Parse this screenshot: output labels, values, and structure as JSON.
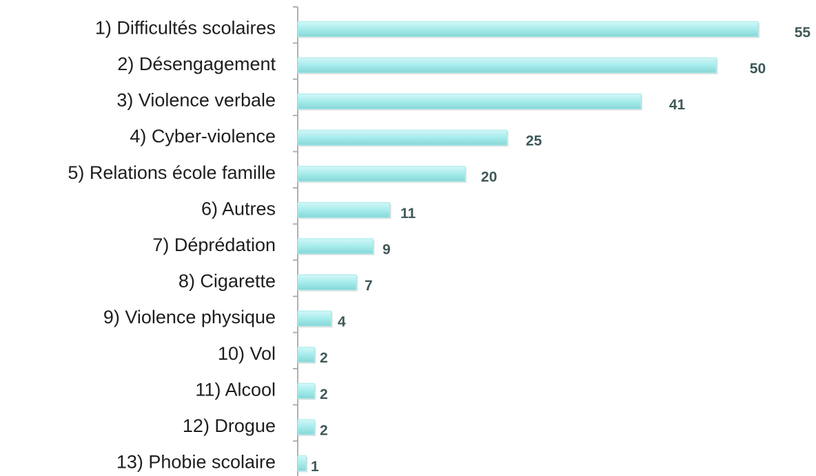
{
  "chart_data": {
    "type": "hbar",
    "categories": [
      "1) Difficultés scolaires",
      "2) Désengagement",
      "3) Violence verbale",
      "4) Cyber-violence",
      "5) Relations école famille",
      "6) Autres",
      "7) Déprédation",
      "8) Cigarette",
      "9) Violence physique",
      "10) Vol",
      "11) Alcool",
      "12) Drogue",
      "13) Phobie scolaire"
    ],
    "values": [
      55,
      50,
      41,
      25,
      20,
      11,
      9,
      7,
      4,
      2,
      2,
      2,
      1
    ],
    "color": "#a6ecec"
  }
}
